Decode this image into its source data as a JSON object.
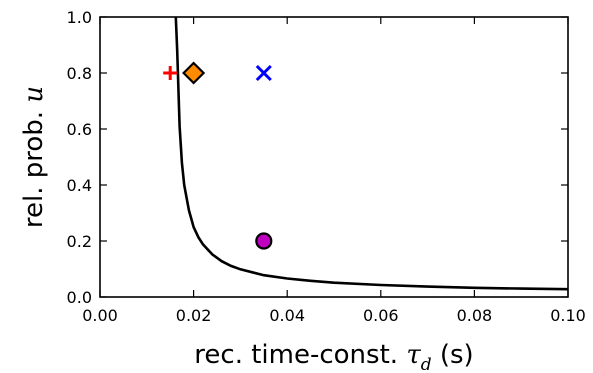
{
  "chart_data": {
    "type": "scatter",
    "title": "",
    "xlabel": {
      "text": "rec. time-const.",
      "symbol": "τ",
      "subscript": "d",
      "unit": "(s)"
    },
    "ylabel": {
      "text": "rel. prob.",
      "symbol": "u"
    },
    "xlim": [
      0.0,
      0.1
    ],
    "ylim": [
      0.0,
      1.0
    ],
    "xticks": [
      "0.00",
      "0.02",
      "0.04",
      "0.06",
      "0.08",
      "0.10"
    ],
    "yticks": [
      "0.0",
      "0.2",
      "0.4",
      "0.6",
      "0.8",
      "1.0"
    ],
    "grid": false,
    "curve": {
      "color": "#000000",
      "x": [
        0.0162,
        0.0165,
        0.017,
        0.0175,
        0.018,
        0.019,
        0.02,
        0.021,
        0.022,
        0.024,
        0.026,
        0.028,
        0.03,
        0.035,
        0.04,
        0.045,
        0.05,
        0.06,
        0.07,
        0.08,
        0.09,
        0.1
      ],
      "y": [
        1.0,
        0.88,
        0.61,
        0.48,
        0.4,
        0.31,
        0.25,
        0.214,
        0.188,
        0.152,
        0.128,
        0.111,
        0.099,
        0.078,
        0.066,
        0.058,
        0.051,
        0.043,
        0.037,
        0.033,
        0.03,
        0.028
      ]
    },
    "points": [
      {
        "x": 0.015,
        "y": 0.8,
        "marker": "plus",
        "color": "#ff0000"
      },
      {
        "x": 0.02,
        "y": 0.8,
        "marker": "diamond",
        "color": "#ff8c00"
      },
      {
        "x": 0.035,
        "y": 0.8,
        "marker": "x",
        "color": "#0000ff"
      },
      {
        "x": 0.035,
        "y": 0.2,
        "marker": "circle",
        "color": "#c000c0"
      }
    ]
  }
}
